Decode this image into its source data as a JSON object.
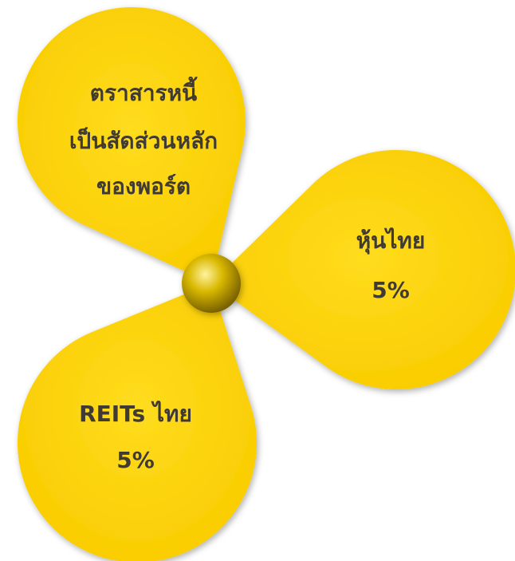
{
  "petals": [
    {
      "lines": [
        "ตราสารหนี้",
        "เป็นสัดส่วนหลัก",
        "ของพอร์ต"
      ]
    },
    {
      "lines": [
        "หุ้นไทย",
        "5%"
      ]
    },
    {
      "lines": [
        "REITs ไทย",
        "5%"
      ]
    }
  ]
}
